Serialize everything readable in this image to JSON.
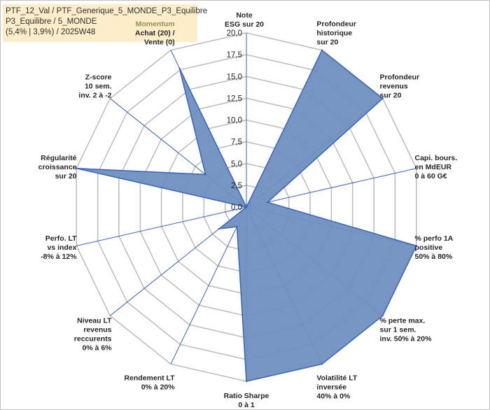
{
  "header": {
    "line1": "PTF_12_Val / PTF_Generique_5_MONDE_P3_Equilibre",
    "line2": "P3_Equilibre / 5_MONDE",
    "line3": "(5,4% | 3,9%) / 2025W48"
  },
  "chart_data": {
    "type": "radar",
    "title": "",
    "rmin": 0,
    "rmax": 20,
    "ticks": [
      "0,0",
      "2,5",
      "5,0",
      "7,5",
      "10,0",
      "12,5",
      "15,0",
      "17,5",
      "20,0"
    ],
    "tick_values": [
      0,
      2.5,
      5,
      7.5,
      10,
      12.5,
      15,
      17.5,
      20
    ],
    "fill_color": "#6f8fbf",
    "line_color": "#3a64b8",
    "grid_color": "#bfbfbf",
    "highlight_color": "#9c8a52",
    "axes": [
      {
        "lines": [
          "Note",
          "ESG sur 20"
        ],
        "value": 0
      },
      {
        "lines": [
          "Profondeur",
          "historique",
          "sur 20"
        ],
        "value": 20
      },
      {
        "lines": [
          "Profondeur",
          "revenus",
          "sur 20"
        ],
        "value": 20
      },
      {
        "lines": [
          "Capi. bours.",
          "en MdEUR",
          "0 à 60 G€"
        ],
        "value": 2.5
      },
      {
        "lines": [
          "% perfo 1A",
          "positive",
          "50% à 80%"
        ],
        "value": 20
      },
      {
        "lines": [
          "% perte max.",
          "sur 1 sem.",
          "inv. 50% à 20%"
        ],
        "value": 20
      },
      {
        "lines": [
          "Volatilité LT",
          "inversée",
          "40% à 0%"
        ],
        "value": 20
      },
      {
        "lines": [
          "Ratio Sharpe",
          "0 à 1"
        ],
        "value": 20
      },
      {
        "lines": [
          "Rendement LT",
          "0% à 20%"
        ],
        "value": 2.5
      },
      {
        "lines": [
          "Niveau LT",
          "revenus",
          "reccurents",
          "0% à 6%"
        ],
        "value": 4
      },
      {
        "lines": [
          "Perfo. LT",
          "vs index",
          "-8% à 12%"
        ],
        "value": 0
      },
      {
        "lines": [
          "Régularité",
          "croissance",
          "sur 20"
        ],
        "value": 20
      },
      {
        "lines": [
          "Z-score",
          "10 sem.",
          "inv. 2 à -2"
        ],
        "value": 6
      },
      {
        "lines": [
          "Momentum",
          "Achat (20) /",
          "Vente (0)"
        ],
        "value": 17.7,
        "highlight_first_line": true
      }
    ]
  }
}
